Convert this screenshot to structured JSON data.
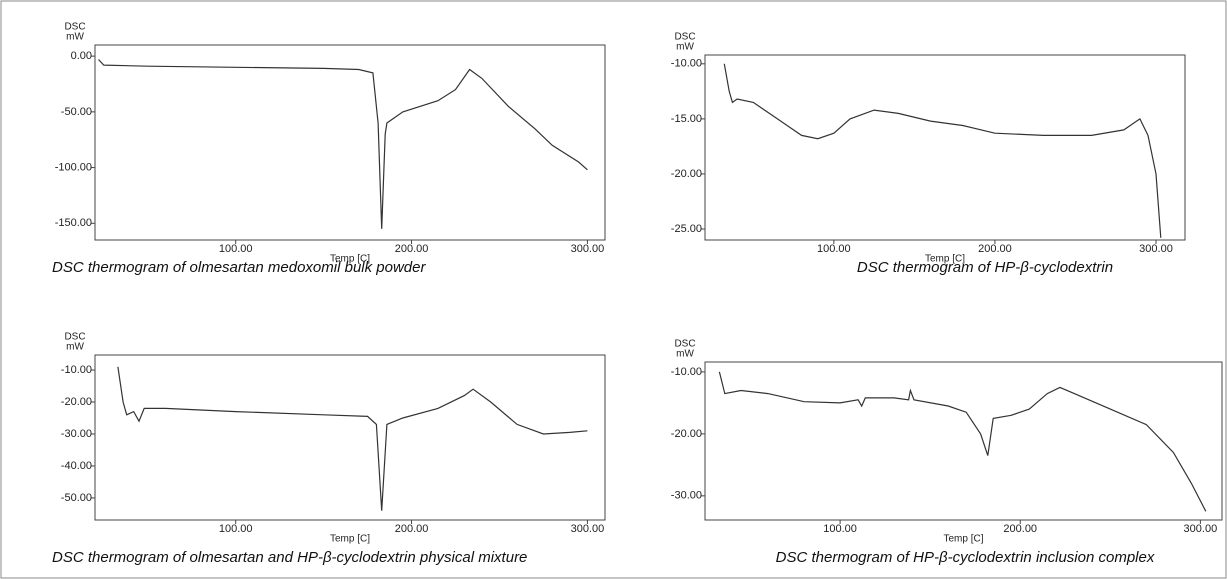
{
  "chart_data": [
    {
      "type": "line",
      "title": "DSC thermogram of olmesartan medoxomil bulk powder",
      "ylabel": "DSC",
      "yunit": "mW",
      "xlabel": "Temp [C]",
      "color": "#333333",
      "grid": false,
      "x": [
        22,
        25,
        50,
        100,
        150,
        170,
        178,
        181,
        183,
        185,
        186,
        195,
        215,
        225,
        233,
        240,
        255,
        270,
        280,
        295,
        300
      ],
      "values": [
        -3,
        -8,
        -9,
        -10,
        -11,
        -12,
        -15,
        -60,
        -155,
        -70,
        -60,
        -50,
        -40,
        -30,
        -12,
        -20,
        -45,
        -65,
        -80,
        -95,
        -102
      ],
      "xlim": [
        20,
        310
      ],
      "xticks": [
        {
          "value": 100,
          "label": "100.00"
        },
        {
          "value": 200,
          "label": "200.00"
        },
        {
          "value": 300,
          "label": "300.00"
        }
      ],
      "ylim": [
        -165,
        10
      ],
      "yticks": [
        {
          "value": 0,
          "label": "0.00"
        },
        {
          "value": -50,
          "label": "-50.00"
        },
        {
          "value": -100,
          "label": "-100.00"
        },
        {
          "value": -150,
          "label": "-150.00"
        }
      ]
    },
    {
      "type": "line",
      "title": "DSC thermogram of HP-β-cyclodextrin",
      "ylabel": "DSC",
      "yunit": "mW",
      "xlabel": "Temp [C]",
      "color": "#333333",
      "grid": false,
      "x": [
        32,
        35,
        37,
        40,
        50,
        60,
        70,
        80,
        90,
        100,
        110,
        125,
        140,
        160,
        180,
        200,
        230,
        260,
        280,
        290,
        295,
        300,
        303
      ],
      "values": [
        -10,
        -12.5,
        -13.5,
        -13.2,
        -13.5,
        -14.5,
        -15.5,
        -16.5,
        -16.8,
        -16.3,
        -15,
        -14.2,
        -14.5,
        -15.2,
        -15.6,
        -16.3,
        -16.5,
        -16.5,
        -16,
        -15,
        -16.5,
        -20,
        -25.8
      ],
      "xlim": [
        20,
        318
      ],
      "xticks": [
        {
          "value": 100,
          "label": "100.00"
        },
        {
          "value": 200,
          "label": "200.00"
        },
        {
          "value": 300,
          "label": "300.00"
        }
      ],
      "ylim": [
        -26,
        -9.2
      ],
      "yticks": [
        {
          "value": -10,
          "label": "-10.00"
        },
        {
          "value": -15,
          "label": "-15.00"
        },
        {
          "value": -20,
          "label": "-20.00"
        },
        {
          "value": -25,
          "label": "-25.00"
        }
      ]
    },
    {
      "type": "line",
      "title": "DSC thermogram of olmesartan and HP-β-cyclodextrin physical mixture",
      "ylabel": "DSC",
      "yunit": "mW",
      "xlabel": "Temp [C]",
      "color": "#333333",
      "grid": false,
      "x": [
        33,
        36,
        38,
        42,
        45,
        48,
        60,
        100,
        150,
        175,
        180,
        183,
        186,
        195,
        215,
        230,
        235,
        245,
        260,
        275,
        290,
        300
      ],
      "values": [
        -9,
        -20,
        -24,
        -23,
        -26,
        -22,
        -22,
        -23,
        -24,
        -24.5,
        -27,
        -54,
        -27,
        -25,
        -22,
        -18,
        -16,
        -20,
        -27,
        -30,
        -29.5,
        -29
      ],
      "xlim": [
        20,
        310
      ],
      "xticks": [
        {
          "value": 100,
          "label": "100.00"
        },
        {
          "value": 200,
          "label": "200.00"
        },
        {
          "value": 300,
          "label": "300.00"
        }
      ],
      "ylim": [
        -56.9,
        -5.3
      ],
      "yticks": [
        {
          "value": -10,
          "label": "-10.00"
        },
        {
          "value": -20,
          "label": "-20.00"
        },
        {
          "value": -30,
          "label": "-30.00"
        },
        {
          "value": -40,
          "label": "-40.00"
        },
        {
          "value": -50,
          "label": "-50.00"
        }
      ]
    },
    {
      "type": "line",
      "title": "DSC thermogram of HP-β-cyclodextrin inclusion complex",
      "ylabel": "DSC",
      "yunit": "mW",
      "xlabel": "Temp [C]",
      "color": "#333333",
      "grid": false,
      "x": [
        33,
        36,
        45,
        60,
        80,
        100,
        110,
        112,
        114,
        130,
        138,
        139,
        141,
        160,
        170,
        178,
        182,
        185,
        195,
        205,
        215,
        222,
        230,
        250,
        270,
        285,
        295,
        303
      ],
      "values": [
        -10,
        -13.5,
        -13,
        -13.5,
        -14.8,
        -15,
        -14.5,
        -15.5,
        -14.2,
        -14.2,
        -14.5,
        -13,
        -14.5,
        -15.5,
        -16.5,
        -20,
        -23.5,
        -17.5,
        -17,
        -16,
        -13.5,
        -12.5,
        -13.5,
        -16,
        -18.5,
        -23,
        -28,
        -32.5
      ],
      "xlim": [
        25,
        312
      ],
      "xticks": [
        {
          "value": 100,
          "label": "100.00"
        },
        {
          "value": 200,
          "label": "200.00"
        },
        {
          "value": 300,
          "label": "300.00"
        }
      ],
      "ylim": [
        -33.9,
        -8.4
      ],
      "yticks": [
        {
          "value": -10,
          "label": "-10.00"
        },
        {
          "value": -20,
          "label": "-20.00"
        },
        {
          "value": -30,
          "label": "-30.00"
        }
      ]
    }
  ]
}
